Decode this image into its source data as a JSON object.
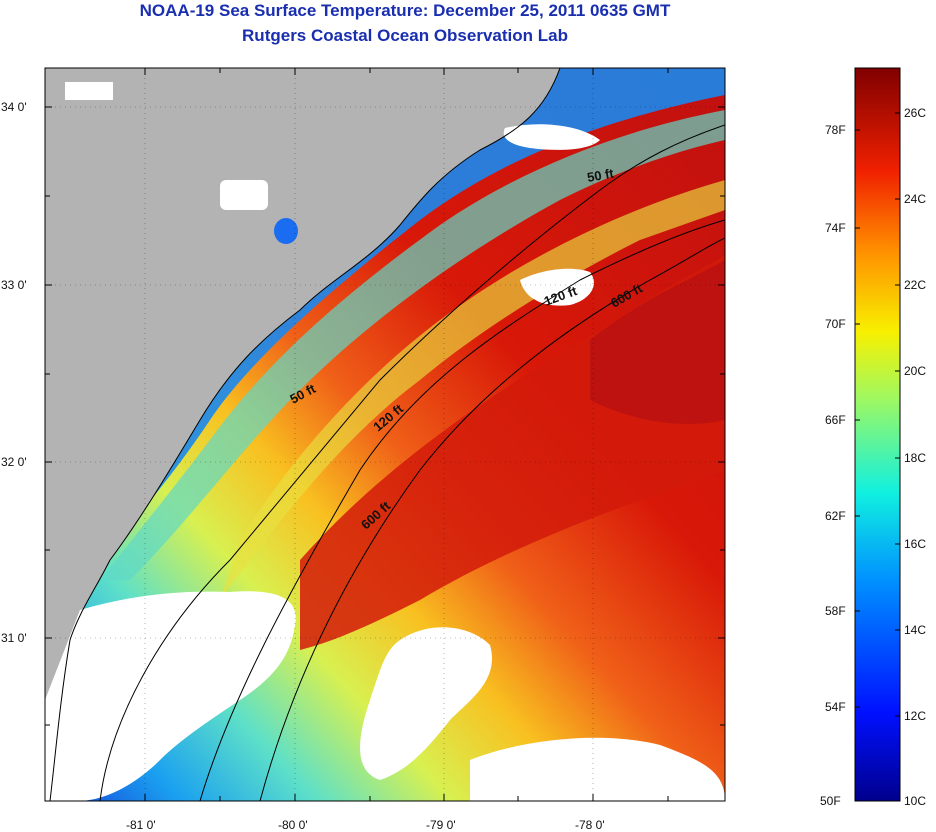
{
  "header": {
    "title": "NOAA-19 Sea Surface Temperature:  December 25, 2011 0635 GMT",
    "subtitle": "Rutgers Coastal Ocean Observation Lab"
  },
  "map": {
    "lat_labels": [
      "34 0'",
      "33 0'",
      "32 0'",
      "31 0'"
    ],
    "lon_labels": [
      "-81 0'",
      "-80 0'",
      "-79 0'",
      "-78 0'"
    ],
    "contours": [
      {
        "label": "50 ft",
        "depth": 50
      },
      {
        "label": "50 ft",
        "depth": 50
      },
      {
        "label": "120 ft",
        "depth": 120
      },
      {
        "label": "120 ft",
        "depth": 120
      },
      {
        "label": "600 ft",
        "depth": 600
      },
      {
        "label": "600 ft",
        "depth": 600
      }
    ],
    "colors": {
      "land": "#b3b3b3",
      "cloud": "#ffffff",
      "coastline": "#000000"
    }
  },
  "colorbar": {
    "fahrenheit_labels": [
      "78F",
      "74F",
      "70F",
      "66F",
      "62F",
      "58F",
      "54F",
      "50F"
    ],
    "celsius_labels": [
      "26C",
      "24C",
      "22C",
      "20C",
      "18C",
      "16C",
      "14C",
      "12C",
      "10C"
    ],
    "range_c": [
      10,
      27
    ]
  }
}
